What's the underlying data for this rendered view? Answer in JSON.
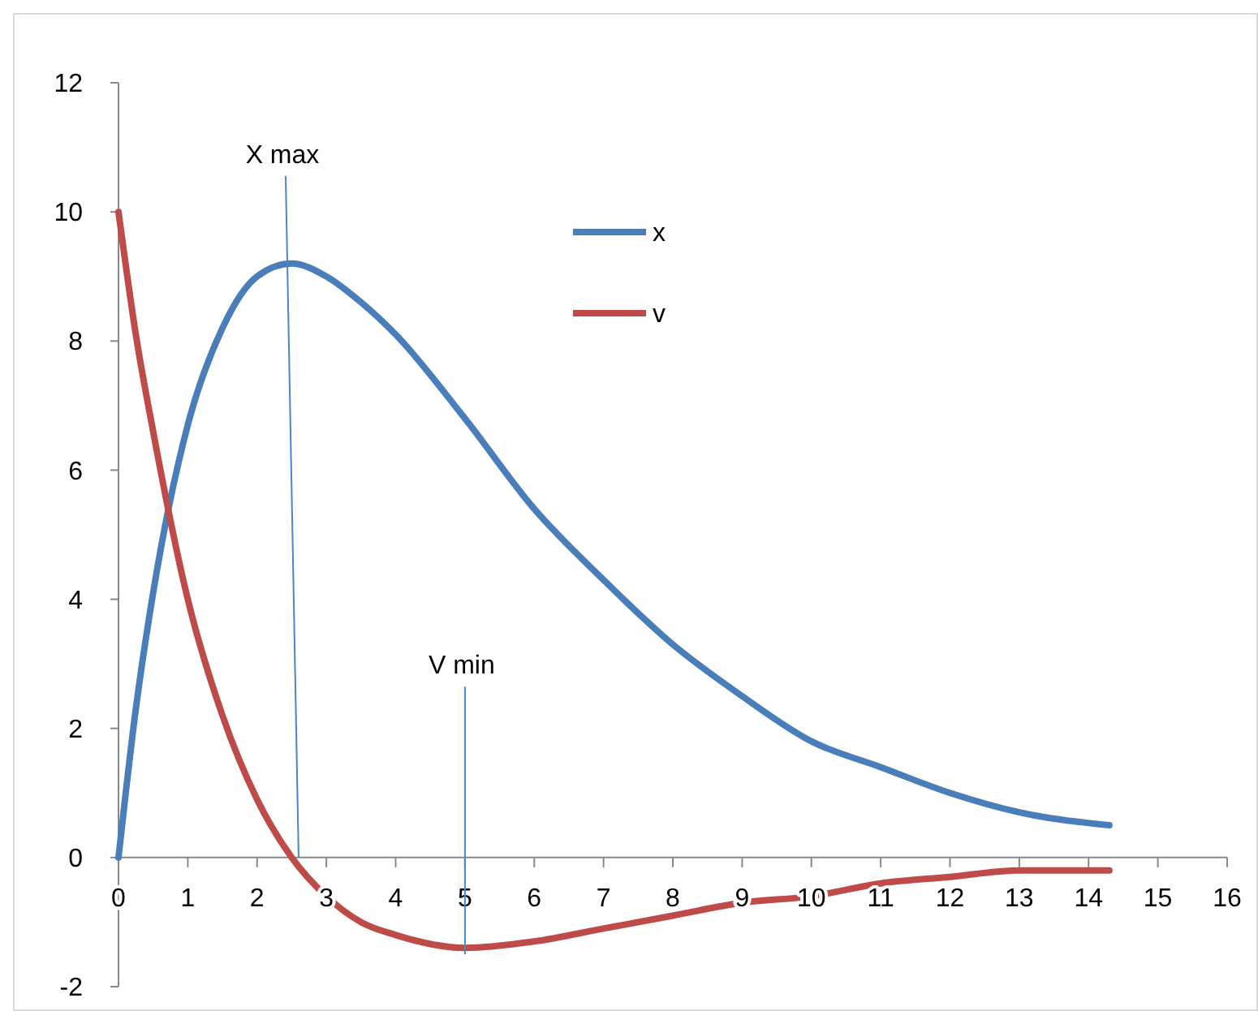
{
  "chart_data": {
    "type": "line",
    "x": [
      0,
      0.25,
      0.5,
      1,
      1.5,
      2,
      2.5,
      3,
      3.5,
      4,
      5,
      6,
      7,
      8,
      9,
      10,
      11,
      12,
      13,
      14.3
    ],
    "series": [
      {
        "name": "x",
        "color": "#4a7ebb",
        "values": [
          0,
          2.3,
          4.1,
          6.7,
          8.2,
          9.0,
          9.2,
          9.0,
          8.6,
          8.1,
          6.8,
          5.4,
          4.3,
          3.3,
          2.5,
          1.8,
          1.4,
          1.0,
          0.7,
          0.5
        ]
      },
      {
        "name": "v",
        "color": "#be4b48",
        "values": [
          10,
          8.1,
          6.6,
          4.0,
          2.2,
          0.9,
          0,
          -0.6,
          -1.0,
          -1.2,
          -1.4,
          -1.3,
          -1.1,
          -0.9,
          -0.7,
          -0.6,
          -0.4,
          -0.3,
          -0.2,
          -0.2
        ]
      }
    ],
    "xlim": [
      0,
      16
    ],
    "xticks": [
      0,
      1,
      2,
      3,
      4,
      5,
      6,
      7,
      8,
      9,
      10,
      11,
      12,
      13,
      14,
      15,
      16
    ],
    "ylim": [
      -2,
      12
    ],
    "yticks": [
      -2,
      0,
      2,
      4,
      6,
      8,
      10,
      12
    ],
    "annotations": [
      {
        "text": "X max",
        "x": 2.6,
        "y": 0
      },
      {
        "text": "V min",
        "x": 5,
        "y": -1.5
      }
    ],
    "legend": "top",
    "grid": false,
    "marker": "none",
    "line_style": "solid"
  }
}
